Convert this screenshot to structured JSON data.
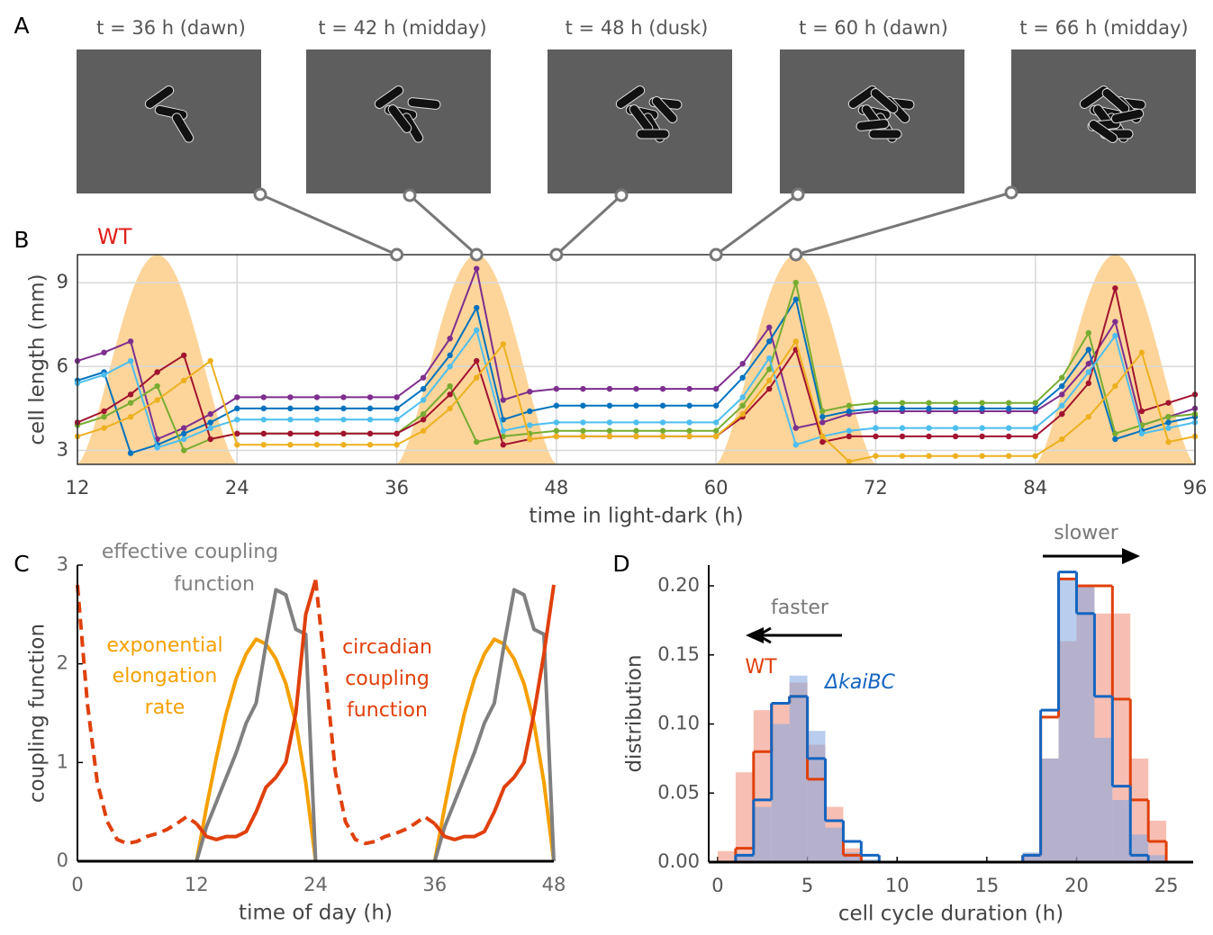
{
  "chart_data": [
    {
      "type": "images",
      "panel_label": "A",
      "captions": [
        "t = 36 h (dawn)",
        "t = 42 h (midday)",
        "t = 48 h (dusk)",
        "t = 60 h (dawn)",
        "t = 66 h (midday)"
      ]
    },
    {
      "type": "line",
      "panel_label": "B",
      "annotation": "WT",
      "xlabel": "time in light-dark (h)",
      "ylabel": "cell length (mm)",
      "xlim": [
        12,
        96
      ],
      "ylim": [
        2.5,
        10
      ],
      "xticks": [
        12,
        24,
        36,
        48,
        60,
        72,
        84,
        96
      ],
      "yticks": [
        3,
        6,
        9
      ],
      "grid": true,
      "light_on": [
        12,
        36,
        60,
        84
      ],
      "light_off": [
        24,
        48,
        72,
        96
      ],
      "light_color": "#fdd59a",
      "snapshot_times": [
        36,
        42,
        48,
        60,
        66
      ],
      "x": [
        12,
        14,
        16,
        18,
        20,
        22,
        24,
        26,
        28,
        30,
        32,
        34,
        36,
        38,
        40,
        42,
        44,
        46,
        48,
        50,
        52,
        54,
        56,
        58,
        60,
        62,
        64,
        66,
        68,
        70,
        72,
        74,
        76,
        78,
        80,
        82,
        84,
        86,
        88,
        90,
        92,
        94,
        96
      ],
      "series": [
        {
          "color": "#7e2f8e",
          "values": [
            6.2,
            6.5,
            6.9,
            3.4,
            3.8,
            4.3,
            4.9,
            4.9,
            4.9,
            4.9,
            4.9,
            4.9,
            4.9,
            5.6,
            7.0,
            9.5,
            4.8,
            5.1,
            5.2,
            5.2,
            5.2,
            5.2,
            5.2,
            5.2,
            5.2,
            6.1,
            7.4,
            3.8,
            4.0,
            4.3,
            4.4,
            4.4,
            4.4,
            4.4,
            4.4,
            4.4,
            4.4,
            5.0,
            6.1,
            7.6,
            3.9,
            4.2,
            4.5
          ]
        },
        {
          "color": "#0072bd",
          "values": [
            5.5,
            5.8,
            2.9,
            3.2,
            3.6,
            4.0,
            4.5,
            4.5,
            4.5,
            4.5,
            4.5,
            4.5,
            4.5,
            5.2,
            6.4,
            8.1,
            4.1,
            4.4,
            4.6,
            4.6,
            4.6,
            4.6,
            4.6,
            4.6,
            4.6,
            5.6,
            6.9,
            8.4,
            4.2,
            4.4,
            4.5,
            4.5,
            4.5,
            4.5,
            4.5,
            4.5,
            4.5,
            5.3,
            6.6,
            3.4,
            3.7,
            4.0,
            4.2
          ]
        },
        {
          "color": "#77ac30",
          "values": [
            3.9,
            4.2,
            4.7,
            5.3,
            3.0,
            3.4,
            3.6,
            3.6,
            3.6,
            3.6,
            3.6,
            3.6,
            3.6,
            4.3,
            5.3,
            3.3,
            3.5,
            3.6,
            3.7,
            3.7,
            3.7,
            3.7,
            3.7,
            3.7,
            3.7,
            4.6,
            5.9,
            9.0,
            4.4,
            4.6,
            4.7,
            4.7,
            4.7,
            4.7,
            4.7,
            4.7,
            4.7,
            5.6,
            7.2,
            3.6,
            3.9,
            4.2,
            4.3
          ]
        },
        {
          "color": "#a2142f",
          "values": [
            4.0,
            4.4,
            5.0,
            5.8,
            6.4,
            3.4,
            3.6,
            3.6,
            3.6,
            3.6,
            3.6,
            3.6,
            3.6,
            4.1,
            5.0,
            6.2,
            3.2,
            3.4,
            3.5,
            3.5,
            3.5,
            3.5,
            3.5,
            3.5,
            3.5,
            4.2,
            5.2,
            6.6,
            3.3,
            3.5,
            3.5,
            3.5,
            3.5,
            3.5,
            3.5,
            3.5,
            3.5,
            4.3,
            5.4,
            8.8,
            4.4,
            4.7,
            5.0
          ]
        },
        {
          "color": "#4dbeee",
          "values": [
            5.4,
            5.7,
            6.2,
            3.1,
            3.4,
            3.8,
            4.1,
            4.1,
            4.1,
            4.1,
            4.1,
            4.1,
            4.1,
            4.8,
            6.0,
            7.3,
            3.7,
            3.9,
            4.0,
            4.0,
            4.0,
            4.0,
            4.0,
            4.0,
            4.0,
            4.9,
            6.3,
            3.2,
            3.5,
            3.7,
            3.8,
            3.8,
            3.8,
            3.8,
            3.8,
            3.8,
            3.8,
            4.6,
            5.8,
            7.1,
            3.6,
            3.8,
            4.0
          ]
        },
        {
          "color": "#edb120",
          "values": [
            3.5,
            3.8,
            4.2,
            4.8,
            5.5,
            6.2,
            3.2,
            3.2,
            3.2,
            3.2,
            3.2,
            3.2,
            3.2,
            3.7,
            4.5,
            5.6,
            6.8,
            3.4,
            3.5,
            3.5,
            3.5,
            3.5,
            3.5,
            3.5,
            3.5,
            4.3,
            5.5,
            6.9,
            3.5,
            2.6,
            2.8,
            2.8,
            2.8,
            2.8,
            2.8,
            2.8,
            2.8,
            3.4,
            4.2,
            5.3,
            6.5,
            3.3,
            3.5
          ]
        }
      ]
    },
    {
      "type": "line",
      "panel_label": "C",
      "xlabel": "time of day (h)",
      "ylabel": "coupling function",
      "xlim": [
        0,
        48
      ],
      "ylim": [
        0,
        3
      ],
      "xticks": [
        0,
        12,
        24,
        36,
        48
      ],
      "yticks": [
        0,
        1,
        2,
        3
      ],
      "x": [
        0,
        1,
        2,
        3,
        4,
        5,
        6,
        7,
        8,
        9,
        10,
        11,
        12,
        13,
        14,
        15,
        16,
        17,
        18,
        19,
        20,
        21,
        22,
        23,
        24,
        25,
        26,
        27,
        28,
        29,
        30,
        31,
        32,
        33,
        34,
        35,
        36,
        37,
        38,
        39,
        40,
        41,
        42,
        43,
        44,
        45,
        46,
        47,
        48
      ],
      "series": [
        {
          "label_lines": [
            "exponential",
            "elongation",
            "rate"
          ],
          "color": "#f5a000",
          "values": [
            null,
            null,
            null,
            null,
            null,
            null,
            null,
            null,
            null,
            null,
            null,
            null,
            0,
            0.55,
            1.05,
            1.5,
            1.85,
            2.1,
            2.25,
            2.2,
            2.05,
            1.8,
            1.4,
            0.8,
            0,
            null,
            null,
            null,
            null,
            null,
            null,
            null,
            null,
            null,
            null,
            null,
            0,
            0.55,
            1.05,
            1.5,
            1.85,
            2.1,
            2.25,
            2.2,
            2.05,
            1.8,
            1.4,
            0.8,
            0
          ]
        },
        {
          "label_lines": [
            "effective coupling",
            "function"
          ],
          "color": "#808080",
          "values": [
            null,
            null,
            null,
            null,
            null,
            null,
            null,
            null,
            null,
            null,
            null,
            null,
            0,
            0.35,
            0.6,
            0.85,
            1.1,
            1.4,
            1.6,
            2.2,
            2.75,
            2.7,
            2.35,
            2.3,
            0,
            null,
            null,
            null,
            null,
            null,
            null,
            null,
            null,
            null,
            null,
            null,
            0,
            0.35,
            0.6,
            0.85,
            1.1,
            1.4,
            1.6,
            2.2,
            2.75,
            2.7,
            2.35,
            2.3,
            0
          ]
        },
        {
          "label_lines": [
            "circadian",
            "coupling",
            "function"
          ],
          "color": "#e0400c",
          "values": [
            null,
            null,
            null,
            null,
            null,
            null,
            null,
            null,
            null,
            null,
            null,
            null,
            0.38,
            0.25,
            0.22,
            0.25,
            0.25,
            0.3,
            0.5,
            0.75,
            0.85,
            1.0,
            1.5,
            2.5,
            2.85,
            null,
            null,
            null,
            null,
            null,
            null,
            null,
            null,
            null,
            null,
            null,
            0.38,
            0.25,
            0.22,
            0.25,
            0.25,
            0.3,
            0.5,
            0.75,
            0.85,
            1.0,
            1.5,
            2.1,
            2.8
          ]
        },
        {
          "color": "#e0400c",
          "dashed": true,
          "values": [
            2.8,
            1.6,
            0.8,
            0.4,
            0.22,
            0.18,
            0.2,
            0.25,
            0.28,
            0.32,
            0.38,
            0.45,
            0.38,
            null,
            null,
            null,
            null,
            null,
            null,
            null,
            null,
            null,
            null,
            null,
            2.85,
            1.9,
            0.9,
            0.4,
            0.22,
            0.18,
            0.2,
            0.25,
            0.28,
            0.32,
            0.38,
            0.45,
            0.38,
            null,
            null,
            null,
            null,
            null,
            null,
            null,
            null,
            null,
            null,
            null,
            null
          ]
        }
      ]
    },
    {
      "type": "histogram",
      "panel_label": "D",
      "xlabel": "cell cycle duration (h)",
      "ylabel": "distribution",
      "annotations": [
        "faster",
        "slower"
      ],
      "xlim": [
        -0.5,
        26.5
      ],
      "ylim": [
        0,
        0.215
      ],
      "xticks": [
        0,
        5,
        10,
        15,
        20,
        25
      ],
      "yticks": [
        {
          "value": 0,
          "label": "0.00"
        },
        {
          "value": 0.05,
          "label": "0.05"
        },
        {
          "value": 0.1,
          "label": "0.10"
        },
        {
          "value": 0.15,
          "label": "0.15"
        },
        {
          "value": 0.2,
          "label": "0.20"
        }
      ],
      "bins": [
        0,
        1,
        2,
        3,
        4,
        5,
        6,
        7,
        8,
        9,
        10,
        11,
        12,
        13,
        14,
        15,
        16,
        17,
        18,
        19,
        20,
        21,
        22,
        23,
        24,
        25
      ],
      "series": [
        {
          "name": "WT",
          "style": "bar",
          "color": "#f08a74",
          "values": [
            0.008,
            0.065,
            0.11,
            0.115,
            0.13,
            0.085,
            0.04,
            0.01,
            0,
            0,
            0,
            0,
            0,
            0,
            0,
            0,
            0,
            0.005,
            0.075,
            0.16,
            0.2,
            0.18,
            0.18,
            0.075,
            0.03
          ]
        },
        {
          "name": "ΔkaiBC",
          "style": "bar",
          "color": "#7fa5e0",
          "values": [
            0,
            0.005,
            0.04,
            0.1,
            0.135,
            0.095,
            0.025,
            0.007,
            0.002,
            0,
            0,
            0,
            0,
            0,
            0,
            0,
            0,
            0.007,
            0.075,
            0.205,
            0.2,
            0.09,
            0.045,
            0.02,
            0.005
          ]
        },
        {
          "style": "step",
          "color": "#e0400c",
          "values": [
            0,
            0.01,
            0.08,
            0.115,
            0.12,
            0.06,
            0.03,
            0.005,
            0,
            0,
            0,
            0,
            0,
            0,
            0,
            0,
            0,
            0.005,
            0.105,
            0.205,
            0.2,
            0.2,
            0.118,
            0.045,
            0.015
          ]
        },
        {
          "style": "step",
          "color": "#1565c0",
          "values": [
            0,
            0.005,
            0.045,
            0.115,
            0.12,
            0.075,
            0.03,
            0.015,
            0.005,
            0,
            0,
            0,
            0,
            0,
            0,
            0,
            0,
            0.005,
            0.11,
            0.21,
            0.18,
            0.12,
            0.055,
            0.005,
            0
          ]
        }
      ]
    }
  ]
}
